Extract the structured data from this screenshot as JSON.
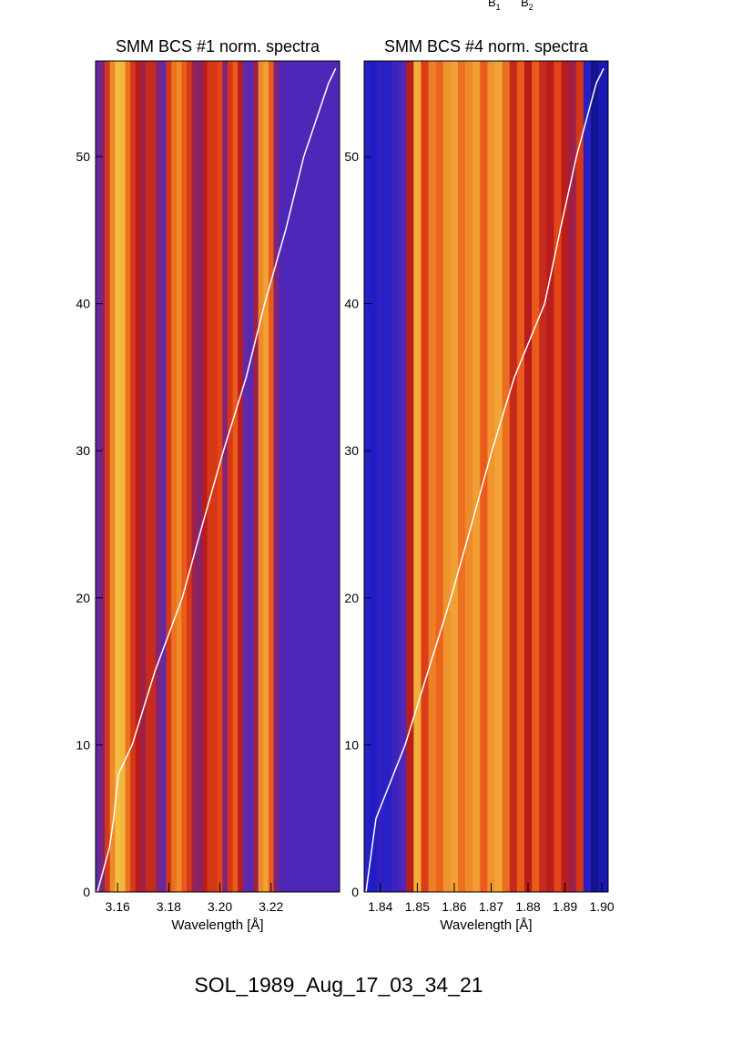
{
  "top_labels": [
    {
      "base": "B",
      "sub": "1"
    },
    {
      "base": "B",
      "sub": "2"
    }
  ],
  "footer": "SOL_1989_Aug_17_03_34_21",
  "chart_data": [
    {
      "type": "heatmap",
      "title": "SMM BCS #1 norm. spectra",
      "xlabel": "Wavelength [Å]",
      "xlim": [
        3.1514,
        3.2468
      ],
      "xticks": [
        3.16,
        3.18,
        {
          "value": 3.2,
          "label": "3.20"
        },
        3.22
      ],
      "ylim": [
        0,
        56.5
      ],
      "yticks": [
        0,
        10,
        20,
        30,
        40,
        50
      ],
      "colormap": [
        "#000000",
        "#1c1cc8",
        "#5a2ab4",
        "#b81c1c",
        "#e84a14",
        "#f09a30",
        "#f5e050"
      ],
      "x": [
        3.152,
        3.154,
        3.156,
        3.158,
        3.16,
        3.162,
        3.164,
        3.166,
        3.168,
        3.17,
        3.172,
        3.174,
        3.176,
        3.178,
        3.18,
        3.182,
        3.184,
        3.186,
        3.188,
        3.19,
        3.192,
        3.194,
        3.196,
        3.198,
        3.2,
        3.202,
        3.204,
        3.206,
        3.208,
        3.21,
        3.212,
        3.214,
        3.216,
        3.218,
        3.22,
        3.222,
        3.224,
        3.226,
        3.228,
        3.23,
        3.232,
        3.234,
        3.236,
        3.238,
        3.24,
        3.242,
        3.244,
        3.246
      ],
      "values": [
        0.35,
        0.4,
        0.6,
        0.8,
        0.92,
        0.9,
        0.75,
        0.6,
        0.5,
        0.45,
        0.55,
        0.55,
        0.4,
        0.35,
        0.6,
        0.75,
        0.8,
        0.7,
        0.6,
        0.45,
        0.4,
        0.5,
        0.6,
        0.6,
        0.65,
        0.4,
        0.6,
        0.7,
        0.5,
        0.35,
        0.32,
        0.45,
        0.8,
        0.85,
        0.7,
        0.4,
        0.3,
        0.3,
        0.3,
        0.3,
        0.3,
        0.3,
        0.3,
        0.3,
        0.3,
        0.3,
        0.3,
        0.3
      ],
      "series": [
        {
          "color": "#ffffff",
          "x": [
            3.1521,
            3.1568,
            3.1585,
            3.1603,
            3.1657,
            3.1746,
            3.1853,
            3.1932,
            3.2014,
            3.2103,
            3.2175,
            3.2257,
            3.2328,
            3.2425,
            3.2453
          ],
          "values": [
            0,
            3,
            5,
            8,
            10,
            15,
            20,
            25,
            30,
            35,
            40,
            45,
            50,
            55,
            56
          ]
        }
      ]
    },
    {
      "type": "heatmap",
      "title": "SMM BCS #4 norm. spectra",
      "xlabel": "Wavelength [Å]",
      "xlim": [
        1.8356,
        1.9017
      ],
      "xticks": [
        1.84,
        1.85,
        1.86,
        1.87,
        1.88,
        1.89,
        {
          "value": 1.9,
          "label": "1.90"
        }
      ],
      "ylim": [
        0,
        56.5
      ],
      "yticks": [
        0,
        10,
        20,
        30,
        40,
        50
      ],
      "colormap": [
        "#000000",
        "#1c1cc8",
        "#5a2ab4",
        "#b81c1c",
        "#e84a14",
        "#f09a30",
        "#f5e050"
      ],
      "x": [
        1.836,
        1.838,
        1.84,
        1.842,
        1.844,
        1.846,
        1.848,
        1.85,
        1.852,
        1.854,
        1.856,
        1.858,
        1.86,
        1.862,
        1.864,
        1.866,
        1.868,
        1.87,
        1.872,
        1.874,
        1.876,
        1.878,
        1.88,
        1.882,
        1.884,
        1.886,
        1.888,
        1.89,
        1.892,
        1.894,
        1.896,
        1.898,
        1.9
      ],
      "values": [
        0.2,
        0.18,
        0.22,
        0.2,
        0.25,
        0.3,
        0.5,
        0.88,
        0.62,
        0.78,
        0.72,
        0.82,
        0.85,
        0.75,
        0.8,
        0.84,
        0.7,
        0.82,
        0.86,
        0.74,
        0.55,
        0.7,
        0.5,
        0.7,
        0.55,
        0.5,
        0.65,
        0.5,
        0.45,
        0.6,
        0.2,
        0.12,
        0.15
      ],
      "series": [
        {
          "color": "#ffffff",
          "x": [
            1.8361,
            1.8388,
            1.8467,
            1.8529,
            1.8591,
            1.8647,
            1.8702,
            1.8763,
            1.8845,
            1.8887,
            1.8931,
            1.8985,
            1.9005
          ],
          "values": [
            0,
            5,
            10,
            15,
            20,
            25,
            30,
            35,
            40,
            45,
            50,
            55,
            56
          ]
        }
      ]
    }
  ]
}
